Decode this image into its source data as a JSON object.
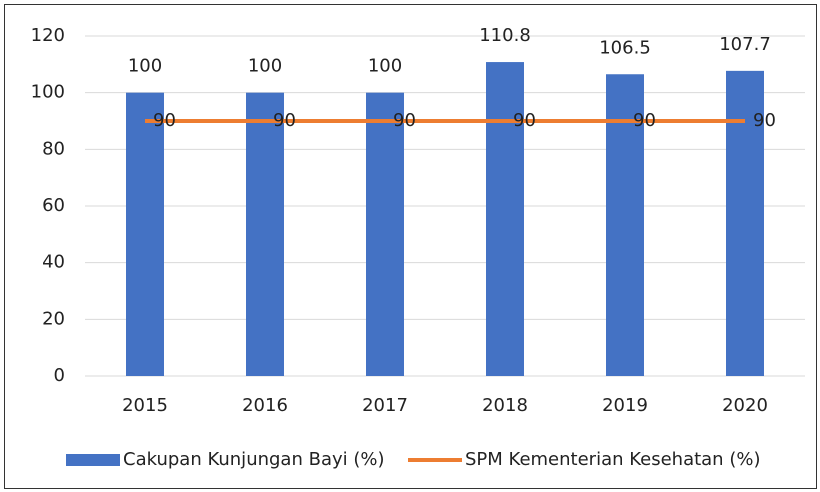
{
  "chart_data": {
    "type": "bar",
    "categories": [
      "2015",
      "2016",
      "2017",
      "2018",
      "2019",
      "2020"
    ],
    "series": [
      {
        "name": "Cakupan Kunjungan Bayi (%)",
        "type": "bar",
        "color": "#4472c4",
        "values": [
          100,
          100,
          100,
          110.8,
          106.5,
          107.7
        ]
      },
      {
        "name": "SPM Kementerian Kesehatan (%)",
        "type": "line",
        "color": "#ed7d31",
        "values": [
          90,
          90,
          90,
          90,
          90,
          90
        ]
      }
    ],
    "ylim": [
      0,
      120
    ],
    "yticks": [
      0,
      20,
      40,
      60,
      80,
      100,
      120
    ],
    "grid": true,
    "legend": "bottom"
  }
}
